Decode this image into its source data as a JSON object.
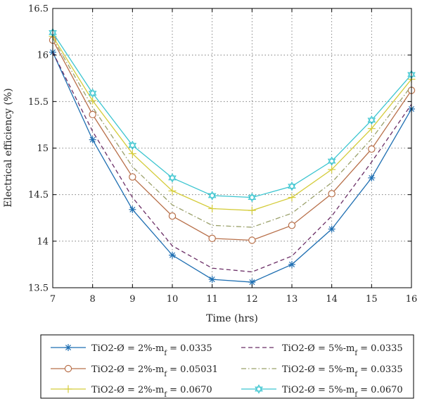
{
  "chart_data": {
    "type": "line",
    "title": "",
    "xlabel": "Time (hrs)",
    "ylabel": "Electrical efficiency (%)",
    "xlim": [
      7,
      16
    ],
    "ylim": [
      13.5,
      16.5
    ],
    "grid": true,
    "legend_position": "bottom",
    "x": [
      7,
      8,
      9,
      10,
      11,
      12,
      13,
      14,
      15,
      16
    ],
    "x_tick_labels": [
      "7",
      "8",
      "9",
      "10",
      "11",
      "12",
      "13",
      "14",
      "15",
      "16"
    ],
    "y_tick_labels": [
      "13.5",
      "14",
      "14.5",
      "15",
      "15.5",
      "16",
      "16.5"
    ],
    "series": [
      {
        "name": "TiO2-Ø = 2%-m",
        "name_sub": "f",
        "name_value": " = 0.0335",
        "color": "#1f6fb2",
        "dash": "solid",
        "marker": "asterisk",
        "values": [
          16.03,
          15.09,
          14.34,
          13.85,
          13.59,
          13.56,
          13.75,
          14.13,
          14.68,
          15.42
        ]
      },
      {
        "name": "TiO2-Ø = 5%-m",
        "name_sub": "f",
        "name_value": " = 0.0335",
        "color": "#6b2e66",
        "dash": "dashed",
        "marker": "none",
        "values": [
          16.03,
          15.18,
          14.47,
          13.95,
          13.71,
          13.67,
          13.84,
          14.27,
          14.85,
          15.47
        ]
      },
      {
        "name": "TiO2-Ø = 2%-m",
        "name_sub": "f",
        "name_value": " = 0.05031",
        "color": "#b8704a",
        "dash": "solid",
        "marker": "circle",
        "values": [
          16.16,
          15.36,
          14.69,
          14.27,
          14.03,
          14.01,
          14.17,
          14.51,
          14.99,
          15.62
        ]
      },
      {
        "name": "TiO2-Ø = 5%-m",
        "name_sub": "f",
        "name_value": " = 0.0335",
        "color": "#9aa06a",
        "dash": "dashdot",
        "marker": "none",
        "values": [
          16.18,
          15.44,
          14.8,
          14.39,
          14.17,
          14.15,
          14.3,
          14.63,
          15.1,
          15.67
        ]
      },
      {
        "name": "TiO2-Ø = 2%-m",
        "name_sub": "f",
        "name_value": " = 0.0670",
        "color": "#d4cc3a",
        "dash": "solid",
        "marker": "plus",
        "values": [
          16.2,
          15.51,
          14.94,
          14.54,
          14.35,
          14.33,
          14.47,
          14.77,
          15.21,
          15.74
        ]
      },
      {
        "name": "TiO2-Ø = 5%-m",
        "name_sub": "f",
        "name_value": " = 0.0670",
        "color": "#3cc5d0",
        "dash": "solid",
        "marker": "hexagram",
        "values": [
          16.24,
          15.59,
          15.03,
          14.68,
          14.49,
          14.47,
          14.59,
          14.86,
          15.3,
          15.79
        ]
      }
    ]
  }
}
